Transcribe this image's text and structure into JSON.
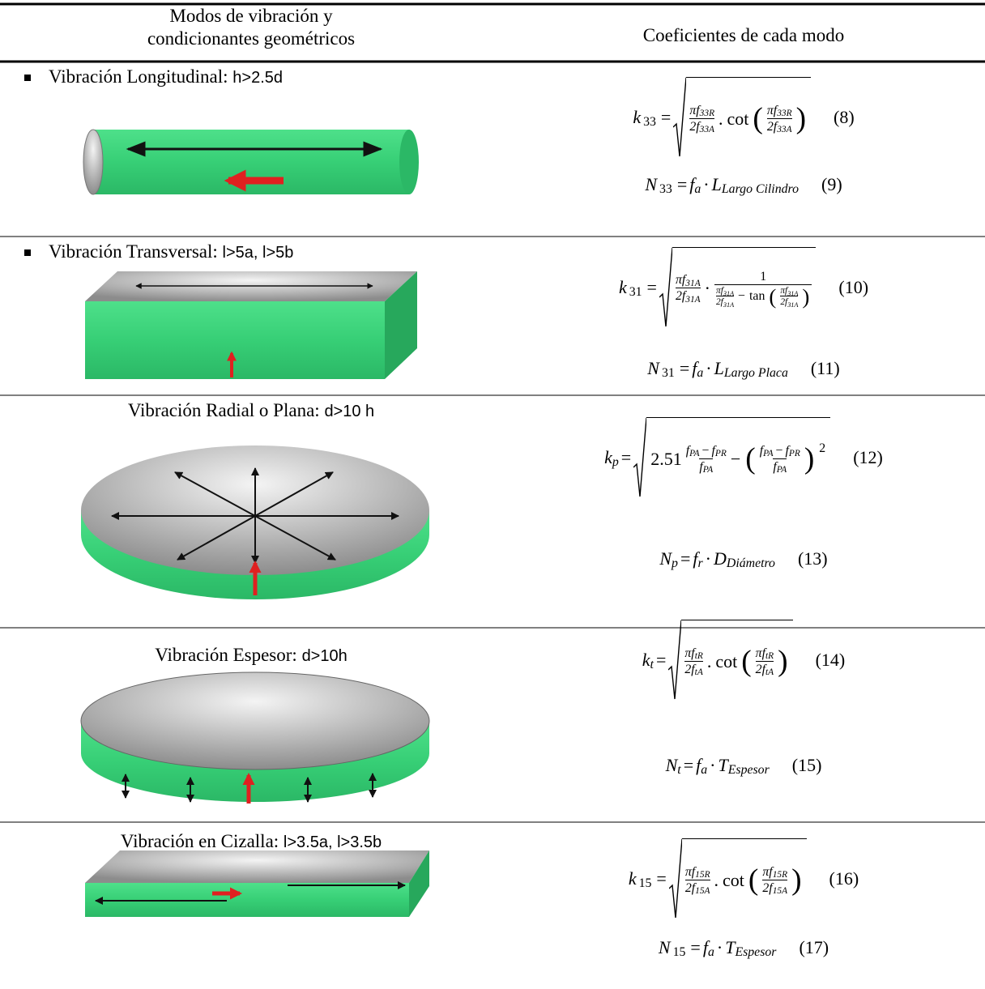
{
  "header": {
    "col1": [
      "Modos de vibración y",
      "condicionantes geométricos"
    ],
    "col2": "Coeficientes de cada modo"
  },
  "rows": [
    {
      "label": "Vibración Longitudinal: ",
      "condition": "h>2.5d",
      "eqs": [
        {
          "expr": [
            {
              "b": "k",
              "s": "33"
            },
            "=",
            {
              "sqrt": [
                {
                  "frac": [
                    [
                      {
                        "b": "πf",
                        "s": "33R"
                      }
                    ],
                    [
                      {
                        "b": "2f",
                        "s": "33A"
                      }
                    ]
                  ]
                },
                ".",
                {
                  "fn": "cot"
                },
                "(",
                {
                  "frac": [
                    [
                      {
                        "b": "πf",
                        "s": "33R"
                      }
                    ],
                    [
                      {
                        "b": "2f",
                        "s": "33A"
                      }
                    ]
                  ]
                },
                ")"
              ]
            }
          ],
          "number": "(8)"
        },
        {
          "expr": [
            {
              "b": "N",
              "s": "33"
            },
            "=",
            {
              "b": "f",
              "s": "a"
            },
            "·",
            {
              "b": "L",
              "s": "Largo Cilindro"
            }
          ],
          "number": "(9)"
        }
      ]
    },
    {
      "label": "Vibración Transversal: ",
      "condition": "l>5a, l>5b",
      "eqs": [
        {
          "expr": [
            {
              "b": "k",
              "s": "31"
            },
            "=",
            {
              "sqrt": [
                {
                  "frac": [
                    [
                      {
                        "b": "πf",
                        "s": "31A"
                      }
                    ],
                    [
                      {
                        "b": "2f",
                        "s": "31A"
                      }
                    ]
                  ]
                },
                "·",
                {
                  "frac": [
                    [
                      "1"
                    ],
                    [
                      {
                        "frac": [
                          [
                            {
                              "b": "πf",
                              "s": "31A"
                            }
                          ],
                          [
                            {
                              "b": "2f",
                              "s": "31A"
                            }
                          ]
                        ]
                      },
                      "−",
                      {
                        "fn": "tan"
                      },
                      "(",
                      {
                        "frac": [
                          [
                            {
                              "b": "πf",
                              "s": "31A"
                            }
                          ],
                          [
                            {
                              "b": "2f",
                              "s": "31A"
                            }
                          ]
                        ]
                      },
                      ")"
                    ]
                  ]
                }
              ]
            }
          ],
          "number": "(10)"
        },
        {
          "expr": [
            {
              "b": "N",
              "s": "31"
            },
            "=",
            {
              "b": "f",
              "s": "a"
            },
            "·",
            {
              "b": "L",
              "s": "Largo Placa"
            }
          ],
          "number": "(11)"
        }
      ]
    },
    {
      "label": "Vibración Radial o Plana: ",
      "condition": "d>10 h",
      "eqs": [
        {
          "expr": [
            {
              "b": "k",
              "s": "p"
            },
            "=",
            {
              "sqrt": [
                "2.51",
                {
                  "frac": [
                    [
                      {
                        "b": "f",
                        "s": "PA"
                      },
                      "−",
                      {
                        "b": "f",
                        "s": "PR"
                      }
                    ],
                    [
                      {
                        "b": "f",
                        "s": "PA"
                      }
                    ]
                  ]
                },
                "−",
                {
                  "b": [
                    "(",
                    {
                      "frac": [
                        [
                          {
                            "b": "f",
                            "s": "PA"
                          },
                          "−",
                          {
                            "b": "f",
                            "s": "PR"
                          }
                        ],
                        [
                          {
                            "b": "f",
                            "s": "PA"
                          }
                        ]
                      ]
                    },
                    ")"
                  ],
                  "p": "2"
                }
              ]
            }
          ],
          "number": "(12)"
        },
        {
          "expr": [
            {
              "b": "N",
              "s": "p"
            },
            "=",
            {
              "b": "f",
              "s": "r"
            },
            "·",
            {
              "b": "D",
              "s": "Diámetro"
            }
          ],
          "number": "(13)"
        }
      ]
    },
    {
      "label": "Vibración Espesor: ",
      "condition": "d>10h",
      "eqs": [
        {
          "expr": [
            {
              "b": "k",
              "s": "t"
            },
            "=",
            {
              "sqrt": [
                {
                  "frac": [
                    [
                      {
                        "b": "πf",
                        "s": "tR"
                      }
                    ],
                    [
                      {
                        "b": "2f",
                        "s": "tA"
                      }
                    ]
                  ]
                },
                ".",
                {
                  "fn": "cot"
                },
                "(",
                {
                  "frac": [
                    [
                      {
                        "b": "πf",
                        "s": "tR"
                      }
                    ],
                    [
                      {
                        "b": "2f",
                        "s": "tA"
                      }
                    ]
                  ]
                },
                ")"
              ]
            }
          ],
          "number": "(14)"
        },
        {
          "expr": [
            {
              "b": "N",
              "s": "t"
            },
            "=",
            {
              "b": "f",
              "s": "a"
            },
            "·",
            {
              "b": "T",
              "s": "Espesor"
            }
          ],
          "number": "(15)"
        }
      ]
    },
    {
      "label": "Vibración en Cizalla: ",
      "condition": "l>3.5a, l>3.5b",
      "eqs": [
        {
          "expr": [
            {
              "b": "k",
              "s": "15"
            },
            "=",
            {
              "sqrt": [
                {
                  "frac": [
                    [
                      {
                        "b": "πf",
                        "s": "15R"
                      }
                    ],
                    [
                      {
                        "b": "2f",
                        "s": "15A"
                      }
                    ]
                  ]
                },
                ".",
                {
                  "fn": "cot"
                },
                "(",
                {
                  "frac": [
                    [
                      {
                        "b": "πf",
                        "s": "15R"
                      }
                    ],
                    [
                      {
                        "b": "2f",
                        "s": "15A"
                      }
                    ]
                  ]
                },
                ")"
              ]
            }
          ],
          "number": "(16)"
        },
        {
          "expr": [
            {
              "b": "N",
              "s": "15"
            },
            "=",
            {
              "b": "f",
              "s": "a"
            },
            "·",
            {
              "b": "T",
              "s": "Espesor"
            }
          ],
          "number": "(17)"
        }
      ]
    }
  ]
}
